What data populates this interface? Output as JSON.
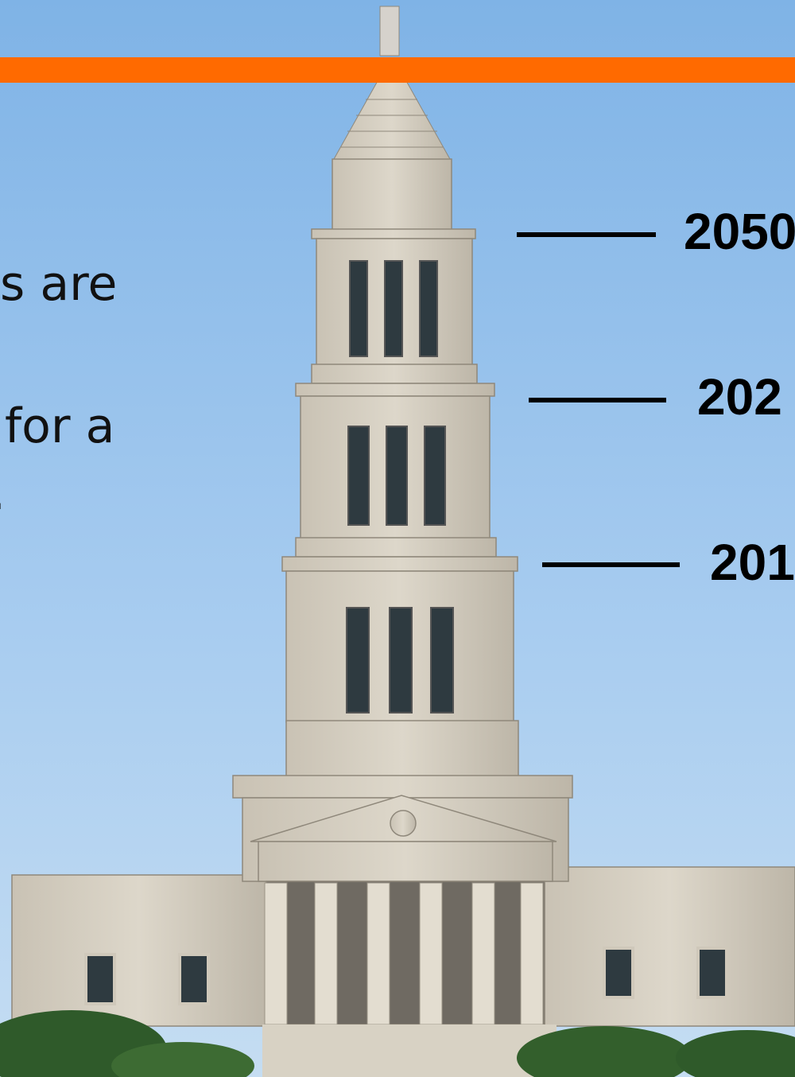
{
  "texts": {
    "left": [
      "s are",
      "for a",
      "."
    ],
    "right": [
      "2050",
      "202",
      "201"
    ]
  }
}
